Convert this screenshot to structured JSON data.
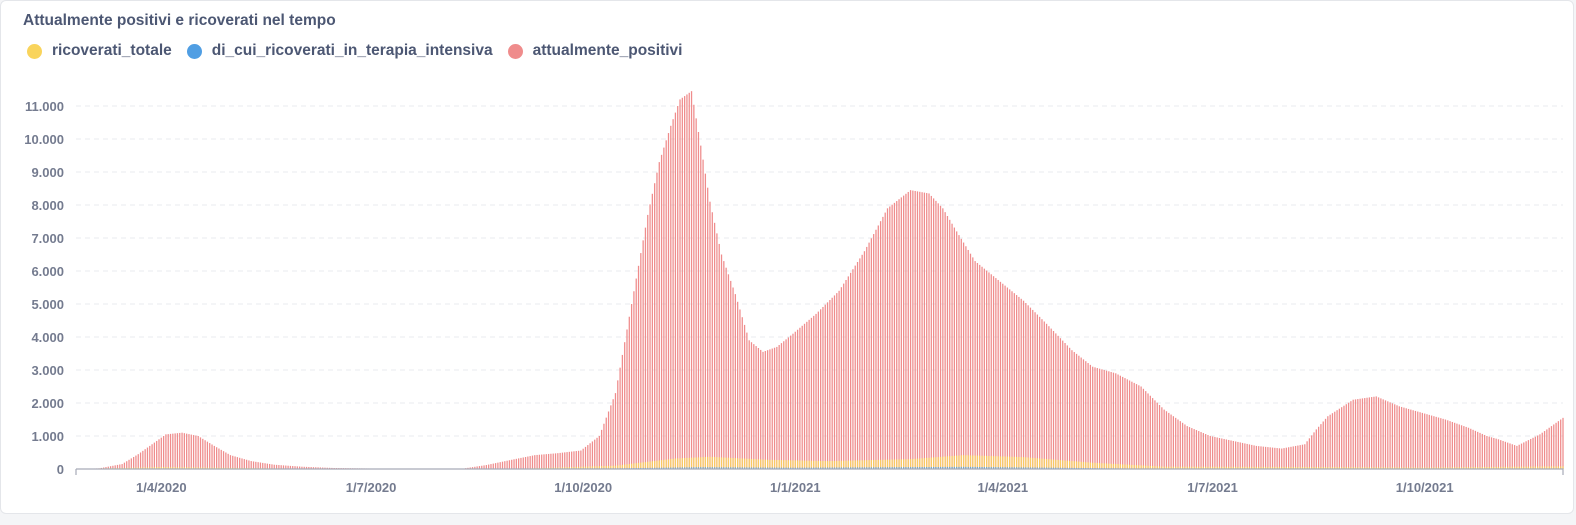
{
  "card": {
    "title": "Attualmente positivi e ricoverati nel tempo"
  },
  "colors": {
    "ricoverati_totale": "#f9d45c",
    "di_cui_ricoverati_in_terapia_intensiva": "#509ee3",
    "attualmente_positivi": "#ef8c8c",
    "grid": "#e9ebef",
    "axis": "#a6abb8"
  },
  "chart_data": {
    "type": "bar",
    "title": "Attualmente positivi e ricoverati nel tempo",
    "xlabel": "",
    "ylabel": "",
    "ylim": [
      0,
      11500
    ],
    "y_ticks": [
      0,
      1000,
      2000,
      3000,
      4000,
      5000,
      6000,
      7000,
      8000,
      9000,
      10000,
      11000
    ],
    "y_tick_labels": [
      "0",
      "1.000",
      "2.000",
      "3.000",
      "4.000",
      "5.000",
      "6.000",
      "7.000",
      "8.000",
      "9.000",
      "10.000",
      "11.000"
    ],
    "x_range": [
      "2020-02-24",
      "2021-11-30"
    ],
    "x_ticks": [
      "2020-04-01",
      "2020-07-01",
      "2020-10-01",
      "2021-01-01",
      "2021-04-01",
      "2021-07-01",
      "2021-10-01"
    ],
    "x_tick_labels": [
      "1/4/2020",
      "1/7/2020",
      "1/10/2020",
      "1/1/2021",
      "1/4/2021",
      "1/7/2021",
      "1/10/2021"
    ],
    "grid": true,
    "legend_position": "top-left",
    "legend": [
      "ricoverati_totale",
      "di_cui_ricoverati_in_terapia_intensiva",
      "attualmente_positivi"
    ],
    "series": [
      {
        "name": "attualmente_positivi",
        "x": [
          "2020-02-24",
          "2020-03-05",
          "2020-03-15",
          "2020-03-22",
          "2020-03-29",
          "2020-04-03",
          "2020-04-10",
          "2020-04-17",
          "2020-04-24",
          "2020-05-01",
          "2020-05-10",
          "2020-05-20",
          "2020-06-01",
          "2020-06-15",
          "2020-07-01",
          "2020-07-20",
          "2020-08-10",
          "2020-08-20",
          "2020-08-31",
          "2020-09-10",
          "2020-09-20",
          "2020-09-30",
          "2020-10-08",
          "2020-10-15",
          "2020-10-22",
          "2020-10-29",
          "2020-11-03",
          "2020-11-08",
          "2020-11-12",
          "2020-11-17",
          "2020-11-21",
          "2020-11-25",
          "2020-11-30",
          "2020-12-06",
          "2020-12-12",
          "2020-12-18",
          "2020-12-24",
          "2020-12-31",
          "2021-01-10",
          "2021-01-20",
          "2021-01-31",
          "2021-02-10",
          "2021-02-20",
          "2021-02-28",
          "2021-03-06",
          "2021-03-12",
          "2021-03-20",
          "2021-03-27",
          "2021-04-03",
          "2021-04-10",
          "2021-04-20",
          "2021-05-01",
          "2021-05-10",
          "2021-05-20",
          "2021-05-31",
          "2021-06-10",
          "2021-06-20",
          "2021-06-30",
          "2021-07-10",
          "2021-07-20",
          "2021-07-31",
          "2021-08-10",
          "2021-08-15",
          "2021-08-20",
          "2021-08-31",
          "2021-09-10",
          "2021-09-20",
          "2021-09-30",
          "2021-10-10",
          "2021-10-20",
          "2021-10-28",
          "2021-11-02",
          "2021-11-10",
          "2021-11-20",
          "2021-11-30"
        ],
        "values": [
          0,
          20,
          150,
          450,
          800,
          1050,
          1100,
          1000,
          700,
          420,
          240,
          130,
          70,
          30,
          15,
          10,
          15,
          120,
          280,
          420,
          480,
          560,
          1000,
          2300,
          5000,
          7700,
          9300,
          10400,
          11200,
          11450,
          9800,
          8100,
          6500,
          5300,
          3900,
          3550,
          3700,
          4100,
          4700,
          5400,
          6600,
          7900,
          8450,
          8350,
          7900,
          7200,
          6300,
          5900,
          5500,
          5100,
          4400,
          3600,
          3100,
          2900,
          2500,
          1800,
          1300,
          1000,
          850,
          700,
          620,
          750,
          1200,
          1600,
          2100,
          2200,
          1900,
          1700,
          1500,
          1250,
          1000,
          900,
          700,
          1050,
          1550
        ]
      },
      {
        "name": "ricoverati_totale",
        "x": [
          "2020-02-24",
          "2020-04-01",
          "2020-06-01",
          "2020-09-01",
          "2020-10-15",
          "2020-11-10",
          "2020-11-25",
          "2020-12-20",
          "2021-01-15",
          "2021-02-20",
          "2021-03-15",
          "2021-04-10",
          "2021-05-10",
          "2021-06-10",
          "2021-08-15",
          "2021-10-01",
          "2021-11-30"
        ],
        "values": [
          0,
          60,
          10,
          5,
          100,
          320,
          370,
          280,
          240,
          300,
          420,
          360,
          190,
          70,
          60,
          45,
          80
        ]
      },
      {
        "name": "di_cui_ricoverati_in_terapia_intensiva",
        "x": [
          "2020-02-24",
          "2020-04-01",
          "2020-06-01",
          "2020-10-15",
          "2020-11-20",
          "2020-12-31",
          "2021-03-15",
          "2021-04-15",
          "2021-06-01",
          "2021-11-30"
        ],
        "values": [
          0,
          10,
          2,
          20,
          55,
          40,
          65,
          45,
          12,
          10
        ]
      }
    ]
  }
}
